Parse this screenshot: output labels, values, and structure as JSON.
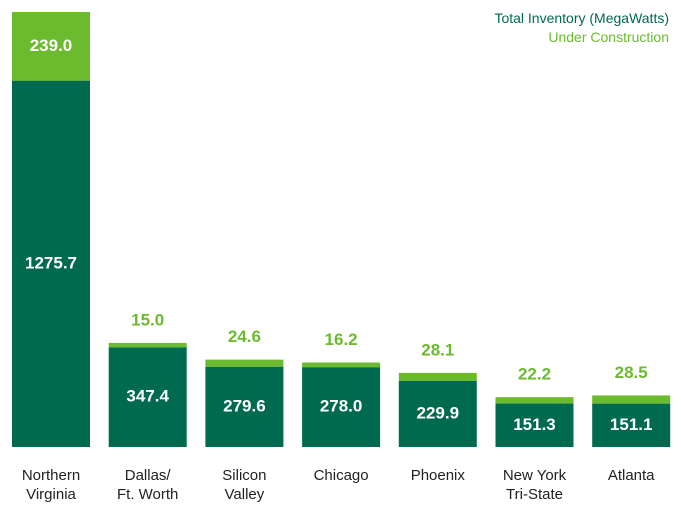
{
  "chart_data": {
    "type": "stacked_bar",
    "categories": [
      "Northern\nVirginia",
      "Dallas/\nFt. Worth",
      "Silicon\nValley",
      "Chicago",
      "Phoenix",
      "New York\nTri-State",
      "Atlanta"
    ],
    "series": [
      {
        "name": "Total Inventory (MegaWatts)",
        "color": "#006a4e",
        "values": [
          1275.7,
          347.4,
          279.6,
          278.0,
          229.9,
          151.3,
          151.1
        ],
        "value_labels": [
          "1275.7",
          "347.4",
          "279.6",
          "278.0",
          "229.9",
          "151.3",
          "151.1"
        ]
      },
      {
        "name": "Under Construction",
        "color": "#6cbb2e",
        "values": [
          239.0,
          15.0,
          24.6,
          16.2,
          28.1,
          22.2,
          28.5
        ],
        "value_labels": [
          "239.0",
          "15.0",
          "24.6",
          "16.2",
          "28.1",
          "22.2",
          "28.5"
        ]
      }
    ],
    "legend": "top-right"
  }
}
